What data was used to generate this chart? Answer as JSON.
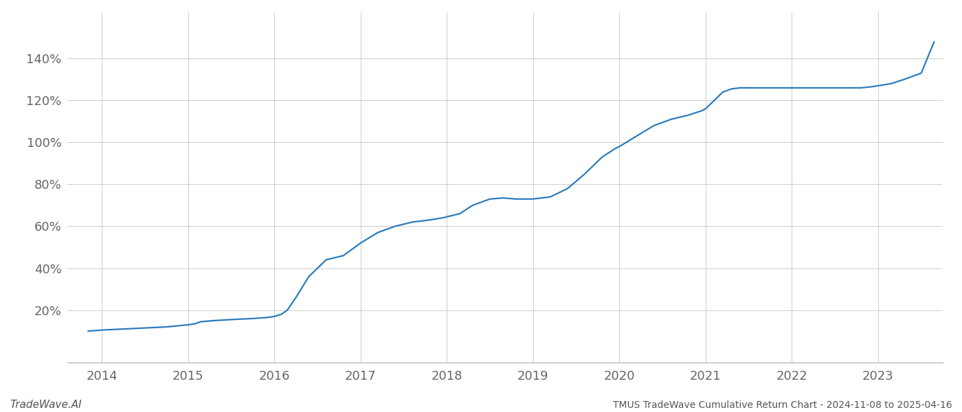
{
  "title": "TMUS TradeWave Cumulative Return Chart - 2024-11-08 to 2025-04-16",
  "watermark": "TradeWave.AI",
  "line_color": "#2b7bba",
  "line_width": 1.6,
  "background_color": "#ffffff",
  "grid_color": "#cccccc",
  "x_years": [
    2014,
    2015,
    2016,
    2017,
    2018,
    2019,
    2020,
    2021,
    2022,
    2023
  ],
  "y_ticks": [
    20,
    40,
    60,
    80,
    100,
    120,
    140
  ],
  "xlim": [
    2013.6,
    2023.75
  ],
  "ylim": [
    -5,
    162
  ],
  "data_x": [
    2013.84,
    2014.0,
    2014.25,
    2014.5,
    2014.75,
    2015.0,
    2015.08,
    2015.15,
    2015.3,
    2015.5,
    2015.75,
    2015.92,
    2016.0,
    2016.08,
    2016.15,
    2016.25,
    2016.4,
    2016.6,
    2016.8,
    2017.0,
    2017.2,
    2017.4,
    2017.6,
    2017.8,
    2017.95,
    2018.0,
    2018.15,
    2018.3,
    2018.5,
    2018.65,
    2018.8,
    2018.95,
    2019.0,
    2019.1,
    2019.2,
    2019.4,
    2019.6,
    2019.8,
    2019.95,
    2020.0,
    2020.2,
    2020.4,
    2020.6,
    2020.8,
    2020.95,
    2021.0,
    2021.1,
    2021.2,
    2021.3,
    2021.4,
    2021.6,
    2021.8,
    2021.95,
    2022.0,
    2022.2,
    2022.4,
    2022.6,
    2022.8,
    2022.92,
    2023.0,
    2023.15,
    2023.3,
    2023.5,
    2023.65
  ],
  "data_y": [
    10,
    10.5,
    11,
    11.5,
    12,
    13,
    13.5,
    14.5,
    15,
    15.5,
    16,
    16.5,
    17,
    18,
    20,
    26,
    36,
    44,
    46,
    52,
    57,
    60,
    62,
    63,
    64,
    64.5,
    66,
    70,
    73,
    73.5,
    73,
    73,
    73,
    73.5,
    74,
    78,
    85,
    93,
    97,
    98,
    103,
    108,
    111,
    113,
    115,
    116,
    120,
    124,
    125.5,
    126,
    126,
    126,
    126,
    126,
    126,
    126,
    126,
    126,
    126.5,
    127,
    128,
    130,
    133,
    148
  ]
}
